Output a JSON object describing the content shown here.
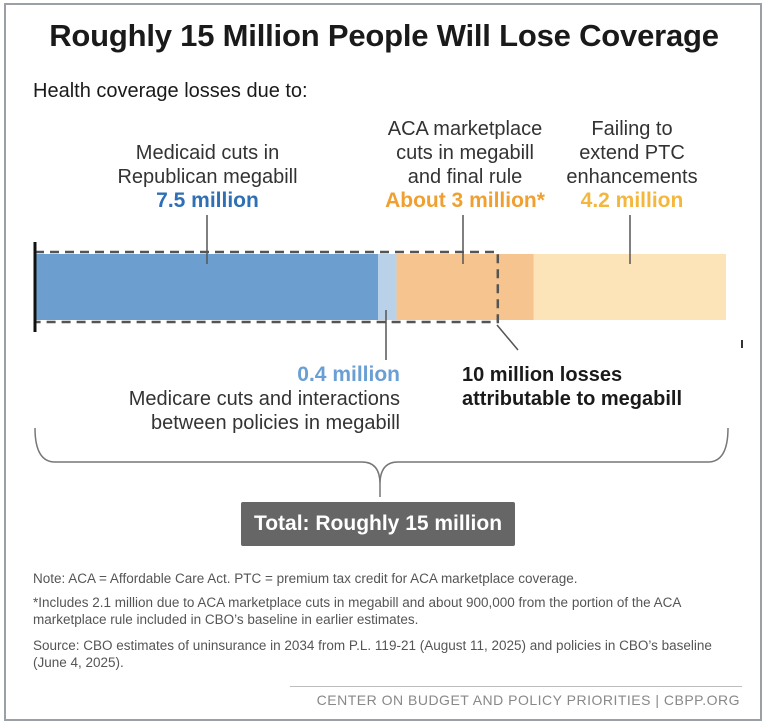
{
  "chart_data": {
    "type": "bar",
    "title": "Roughly 15 Million People Will Lose Coverage",
    "subtitle": "Health coverage losses due to:",
    "unit": "million",
    "orientation": "horizontal-stacked",
    "segments": [
      {
        "name": "Medicaid cuts in Republican megabill",
        "value": 7.5,
        "color": "#6c9fcf"
      },
      {
        "name": "Medicare cuts and interactions between policies in megabill",
        "value": 0.4,
        "color": "#b9d2ea"
      },
      {
        "name": "ACA marketplace cuts in megabill and final rule",
        "value": 3.0,
        "color": "#f6c48f"
      },
      {
        "name": "Failing to extend PTC enhancements",
        "value": 4.2,
        "color": "#fde3b8"
      }
    ],
    "annotations": {
      "megabill_total": "10 million losses attributable to megabill",
      "total": "Total:  Roughly 15 million"
    }
  },
  "labels": {
    "medicaid_line1": "Medicaid cuts in",
    "medicaid_line2": "Republican megabill",
    "medicaid_value": "7.5 million",
    "aca_line1": "ACA marketplace",
    "aca_line2": "cuts in megabill",
    "aca_line3": "and final rule",
    "aca_value": "About 3 million*",
    "ptc_line1": "Failing to",
    "ptc_line2": "extend PTC",
    "ptc_line3": "enhancements",
    "ptc_value": "4.2 million",
    "medicare_value": "0.4 million",
    "medicare_line1": "Medicare cuts and interactions",
    "medicare_line2": "between policies in megabill",
    "megabill_line1": "10 million losses",
    "megabill_line2": "attributable to megabill"
  },
  "notes": {
    "note1": "Note: ACA = Affordable Care Act. PTC = premium tax credit for ACA marketplace coverage.",
    "note2": "*Includes 2.1 million due to ACA marketplace cuts in megabill and about 900,000 from the portion of the ACA marketplace rule included in CBO’s baseline in earlier estimates.",
    "note3": "Source: CBO estimates of uninsurance in 2034 from P.L. 119-21 (August 11, 2025) and policies in CBO’s baseline (June 4, 2025)."
  },
  "footer": "CENTER ON BUDGET AND POLICY PRIORITIES | CBPP.ORG"
}
